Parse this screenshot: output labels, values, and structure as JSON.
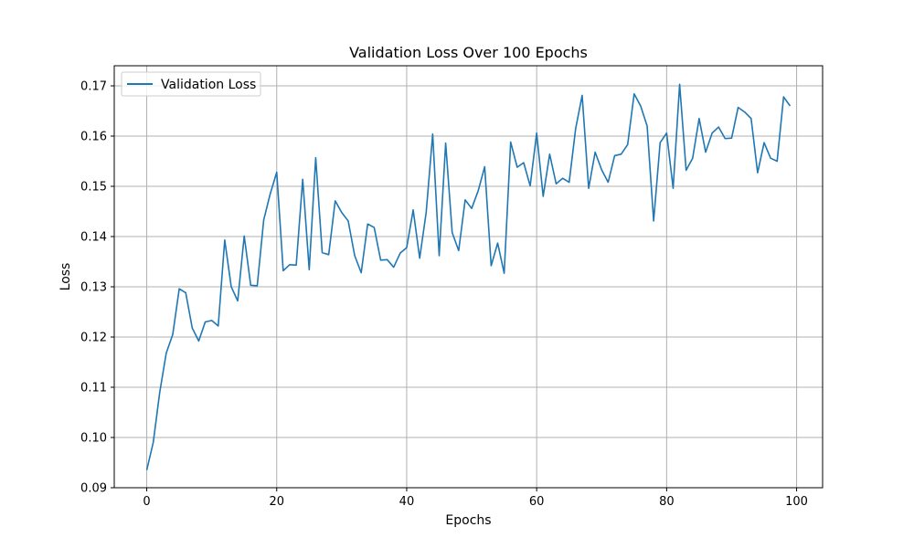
{
  "chart_data": {
    "type": "line",
    "title": "Validation Loss Over 100 Epochs",
    "xlabel": "Epochs",
    "ylabel": "Loss",
    "xlim": [
      -5,
      104
    ],
    "ylim": [
      0.09,
      0.174
    ],
    "xticks": [
      0,
      20,
      40,
      60,
      80,
      100
    ],
    "yticks": [
      0.09,
      0.1,
      0.11,
      0.12,
      0.13,
      0.14,
      0.15,
      0.16,
      0.17
    ],
    "xtick_labels": [
      "0",
      "20",
      "40",
      "60",
      "80",
      "100"
    ],
    "ytick_labels": [
      "0.09",
      "0.10",
      "0.11",
      "0.12",
      "0.13",
      "0.14",
      "0.15",
      "0.16",
      "0.17"
    ],
    "grid": true,
    "legend": {
      "placement": "top-left",
      "entries": [
        "Validation Loss"
      ]
    },
    "series": [
      {
        "name": "Validation Loss",
        "color": "#1f77b4",
        "x": [
          0,
          1,
          2,
          3,
          4,
          5,
          6,
          7,
          8,
          9,
          10,
          11,
          12,
          13,
          14,
          15,
          16,
          17,
          18,
          19,
          20,
          21,
          22,
          23,
          24,
          25,
          26,
          27,
          28,
          29,
          30,
          31,
          32,
          33,
          34,
          35,
          36,
          37,
          38,
          39,
          40,
          41,
          42,
          43,
          44,
          45,
          46,
          47,
          48,
          49,
          50,
          51,
          52,
          53,
          54,
          55,
          56,
          57,
          58,
          59,
          60,
          61,
          62,
          63,
          64,
          65,
          66,
          67,
          68,
          69,
          70,
          71,
          72,
          73,
          74,
          75,
          76,
          77,
          78,
          79,
          80,
          81,
          82,
          83,
          84,
          85,
          86,
          87,
          88,
          89,
          90,
          91,
          92,
          93,
          94,
          95,
          96,
          97,
          98,
          99
        ],
        "values": [
          0.0935,
          0.099,
          0.109,
          0.1168,
          0.1205,
          0.1296,
          0.1288,
          0.1218,
          0.1192,
          0.123,
          0.1233,
          0.1222,
          0.1393,
          0.13,
          0.1272,
          0.1401,
          0.1303,
          0.1302,
          0.1433,
          0.1485,
          0.1528,
          0.1332,
          0.1344,
          0.1343,
          0.1514,
          0.1334,
          0.1557,
          0.1368,
          0.1364,
          0.1471,
          0.1448,
          0.1431,
          0.1362,
          0.1328,
          0.1425,
          0.1418,
          0.1353,
          0.1354,
          0.1339,
          0.1367,
          0.1378,
          0.1453,
          0.1357,
          0.1448,
          0.1604,
          0.1362,
          0.1586,
          0.1408,
          0.1372,
          0.1473,
          0.1456,
          0.1491,
          0.1539,
          0.1342,
          0.1387,
          0.1327,
          0.1588,
          0.1538,
          0.1547,
          0.1501,
          0.1606,
          0.148,
          0.1564,
          0.1505,
          0.1516,
          0.1508,
          0.1615,
          0.1681,
          0.1496,
          0.1568,
          0.1533,
          0.1508,
          0.1561,
          0.1564,
          0.1583,
          0.1684,
          0.166,
          0.162,
          0.1431,
          0.1587,
          0.1606,
          0.1496,
          0.1703,
          0.1532,
          0.1556,
          0.1635,
          0.1568,
          0.1606,
          0.1618,
          0.1595,
          0.1596,
          0.1657,
          0.1648,
          0.1635,
          0.1527,
          0.1587,
          0.1556,
          0.155,
          0.1678,
          0.166
        ]
      }
    ]
  }
}
